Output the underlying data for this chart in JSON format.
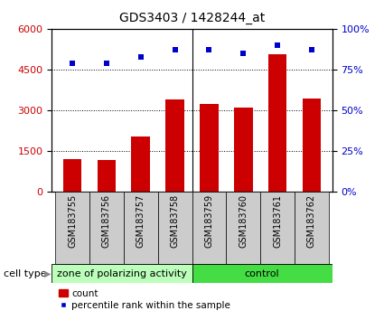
{
  "title": "GDS3403 / 1428244_at",
  "categories": [
    "GSM183755",
    "GSM183756",
    "GSM183757",
    "GSM183758",
    "GSM183759",
    "GSM183760",
    "GSM183761",
    "GSM183762"
  ],
  "bar_values": [
    1200,
    1180,
    2050,
    3400,
    3250,
    3100,
    5050,
    3450
  ],
  "percentile_values": [
    79,
    79,
    83,
    87,
    87,
    85,
    90,
    87
  ],
  "bar_color": "#cc0000",
  "percentile_color": "#0000cc",
  "left_ylim": [
    0,
    6000
  ],
  "left_yticks": [
    0,
    1500,
    3000,
    4500,
    6000
  ],
  "right_ylim": [
    0,
    100
  ],
  "right_yticks": [
    0,
    25,
    50,
    75,
    100
  ],
  "group1_label": "zone of polarizing activity",
  "group2_label": "control",
  "n_group1": 4,
  "n_group2": 4,
  "group1_color": "#bbffbb",
  "group2_color": "#44dd44",
  "xtick_bg_color": "#cccccc",
  "cell_type_label": "cell type",
  "legend_bar_label": "count",
  "legend_dot_label": "percentile rank within the sample",
  "tick_label_color_left": "#cc0000",
  "tick_label_color_right": "#0000cc",
  "title_fontsize": 10,
  "tick_fontsize": 8,
  "xtick_fontsize": 7,
  "group_fontsize": 8
}
